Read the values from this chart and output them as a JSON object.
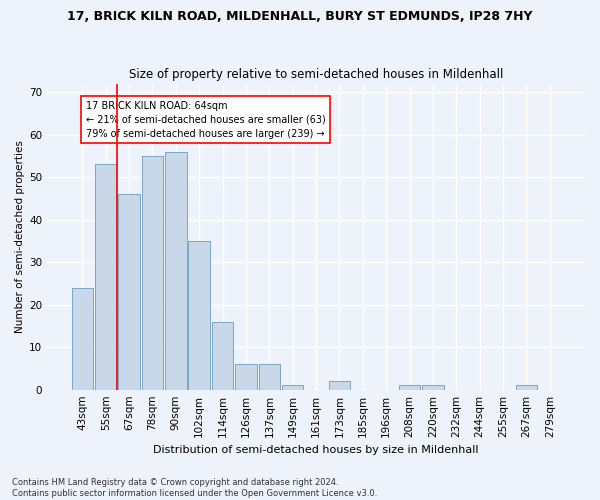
{
  "title1": "17, BRICK KILN ROAD, MILDENHALL, BURY ST EDMUNDS, IP28 7HY",
  "title2": "Size of property relative to semi-detached houses in Mildenhall",
  "xlabel": "Distribution of semi-detached houses by size in Mildenhall",
  "ylabel": "Number of semi-detached properties",
  "categories": [
    "43sqm",
    "55sqm",
    "67sqm",
    "78sqm",
    "90sqm",
    "102sqm",
    "114sqm",
    "126sqm",
    "137sqm",
    "149sqm",
    "161sqm",
    "173sqm",
    "185sqm",
    "196sqm",
    "208sqm",
    "220sqm",
    "232sqm",
    "244sqm",
    "255sqm",
    "267sqm",
    "279sqm"
  ],
  "values": [
    24,
    53,
    46,
    55,
    56,
    35,
    16,
    6,
    6,
    1,
    0,
    2,
    0,
    0,
    1,
    1,
    0,
    0,
    0,
    1,
    0
  ],
  "bar_color": "#c8d8e8",
  "bar_edge_color": "#7aa8c8",
  "red_line_x": 1.5,
  "annotation_text": "17 BRICK KILN ROAD: 64sqm\n← 21% of semi-detached houses are smaller (63)\n79% of semi-detached houses are larger (239) →",
  "ylim": [
    0,
    72
  ],
  "yticks": [
    0,
    10,
    20,
    30,
    40,
    50,
    60,
    70
  ],
  "footer": "Contains HM Land Registry data © Crown copyright and database right 2024.\nContains public sector information licensed under the Open Government Licence v3.0.",
  "bg_color": "#eef2fa",
  "grid_color": "#ffffff",
  "title_fontsize": 9,
  "subtitle_fontsize": 8.5,
  "bar_width": 0.92
}
